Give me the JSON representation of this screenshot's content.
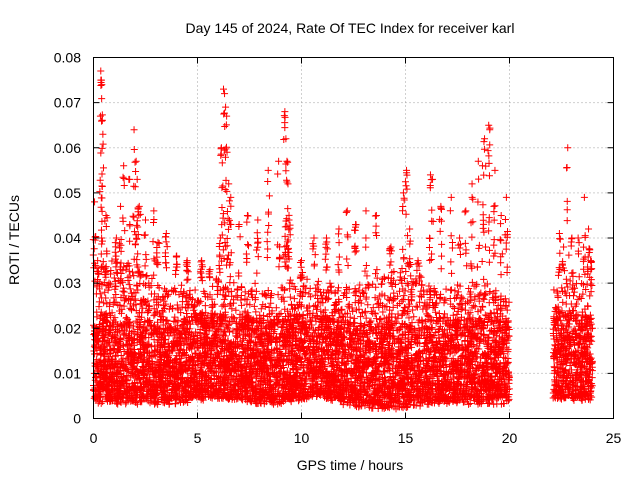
{
  "chart_data": {
    "type": "scatter",
    "title": "Day 145 of 2024, Rate Of TEC Index for receiver karl",
    "xlabel": "GPS time / hours",
    "ylabel": "ROTI / TECUs",
    "xlim": [
      0,
      25
    ],
    "ylim": [
      0,
      0.08
    ],
    "xticks": [
      0,
      5,
      10,
      15,
      20,
      25
    ],
    "xtick_labels": [
      "0",
      "5",
      "10",
      "15",
      "20",
      "25"
    ],
    "yticks": [
      0,
      0.01,
      0.02,
      0.03,
      0.04,
      0.05,
      0.06,
      0.07,
      0.08
    ],
    "ytick_labels": [
      "0",
      "0.01",
      "0.02",
      "0.03",
      "0.04",
      "0.05",
      "0.06",
      "0.07",
      "0.08"
    ],
    "grid": true,
    "marker": "+",
    "color": "#ff0000",
    "series": [
      {
        "name": "ROTI",
        "data_gaps_hours": [
          [
            20.0,
            22.1
          ]
        ],
        "points": [
          [
            0.05,
            0.048
          ],
          [
            0.2,
            0.035
          ],
          [
            0.35,
            0.077
          ],
          [
            0.38,
            0.075
          ],
          [
            0.4,
            0.074
          ],
          [
            0.42,
            0.066
          ],
          [
            0.45,
            0.063
          ],
          [
            0.6,
            0.045
          ],
          [
            1.1,
            0.04
          ],
          [
            1.3,
            0.047
          ],
          [
            1.45,
            0.056
          ],
          [
            1.7,
            0.053
          ],
          [
            1.95,
            0.064
          ],
          [
            2.05,
            0.057
          ],
          [
            2.1,
            0.053
          ],
          [
            2.2,
            0.047
          ],
          [
            2.5,
            0.044
          ],
          [
            2.9,
            0.046
          ],
          [
            3.1,
            0.039
          ],
          [
            3.5,
            0.041
          ],
          [
            4.0,
            0.036
          ],
          [
            4.5,
            0.035
          ],
          [
            5.2,
            0.035
          ],
          [
            5.6,
            0.033
          ],
          [
            6.1,
            0.04
          ],
          [
            6.15,
            0.06
          ],
          [
            6.25,
            0.073
          ],
          [
            6.3,
            0.072
          ],
          [
            6.35,
            0.069
          ],
          [
            6.4,
            0.067
          ],
          [
            6.5,
            0.052
          ],
          [
            6.6,
            0.049
          ],
          [
            7.0,
            0.043
          ],
          [
            7.4,
            0.045
          ],
          [
            7.9,
            0.044
          ],
          [
            8.4,
            0.055
          ],
          [
            8.9,
            0.057
          ],
          [
            9.2,
            0.068
          ],
          [
            9.25,
            0.062
          ],
          [
            9.3,
            0.057
          ],
          [
            9.35,
            0.052
          ],
          [
            9.4,
            0.044
          ],
          [
            10.0,
            0.035
          ],
          [
            10.6,
            0.04
          ],
          [
            11.2,
            0.04
          ],
          [
            11.8,
            0.042
          ],
          [
            12.2,
            0.046
          ],
          [
            12.6,
            0.043
          ],
          [
            13.1,
            0.046
          ],
          [
            13.6,
            0.045
          ],
          [
            14.3,
            0.038
          ],
          [
            14.9,
            0.05
          ],
          [
            15.05,
            0.055
          ],
          [
            15.2,
            0.042
          ],
          [
            15.6,
            0.035
          ],
          [
            16.2,
            0.054
          ],
          [
            16.3,
            0.053
          ],
          [
            16.7,
            0.047
          ],
          [
            17.2,
            0.049
          ],
          [
            17.6,
            0.04
          ],
          [
            17.9,
            0.046
          ],
          [
            18.2,
            0.052
          ],
          [
            18.5,
            0.057
          ],
          [
            18.7,
            0.056
          ],
          [
            18.8,
            0.062
          ],
          [
            19.0,
            0.065
          ],
          [
            19.05,
            0.064
          ],
          [
            19.3,
            0.055
          ],
          [
            19.6,
            0.045
          ],
          [
            19.85,
            0.049
          ],
          [
            22.4,
            0.041
          ],
          [
            22.6,
            0.038
          ],
          [
            22.8,
            0.06
          ],
          [
            23.0,
            0.04
          ],
          [
            23.3,
            0.04
          ],
          [
            23.6,
            0.049
          ],
          [
            23.8,
            0.042
          ],
          [
            23.9,
            0.035
          ]
        ],
        "envelope_hours": [
          0,
          1,
          2,
          3,
          4,
          5,
          6,
          7,
          8,
          9,
          10,
          11,
          12,
          13,
          14,
          15,
          16,
          17,
          18,
          19,
          20,
          22.1,
          23,
          24
        ],
        "envelope_upper": [
          0.033,
          0.035,
          0.034,
          0.03,
          0.029,
          0.028,
          0.031,
          0.031,
          0.029,
          0.029,
          0.031,
          0.03,
          0.029,
          0.03,
          0.031,
          0.034,
          0.031,
          0.028,
          0.03,
          0.03,
          0.026,
          0.029,
          0.031,
          0.03
        ],
        "envelope_lower": [
          0.004,
          0.004,
          0.004,
          0.004,
          0.004,
          0.005,
          0.005,
          0.005,
          0.004,
          0.004,
          0.005,
          0.005,
          0.004,
          0.003,
          0.003,
          0.003,
          0.004,
          0.004,
          0.004,
          0.004,
          0.004,
          0.005,
          0.005,
          0.005
        ]
      }
    ]
  }
}
